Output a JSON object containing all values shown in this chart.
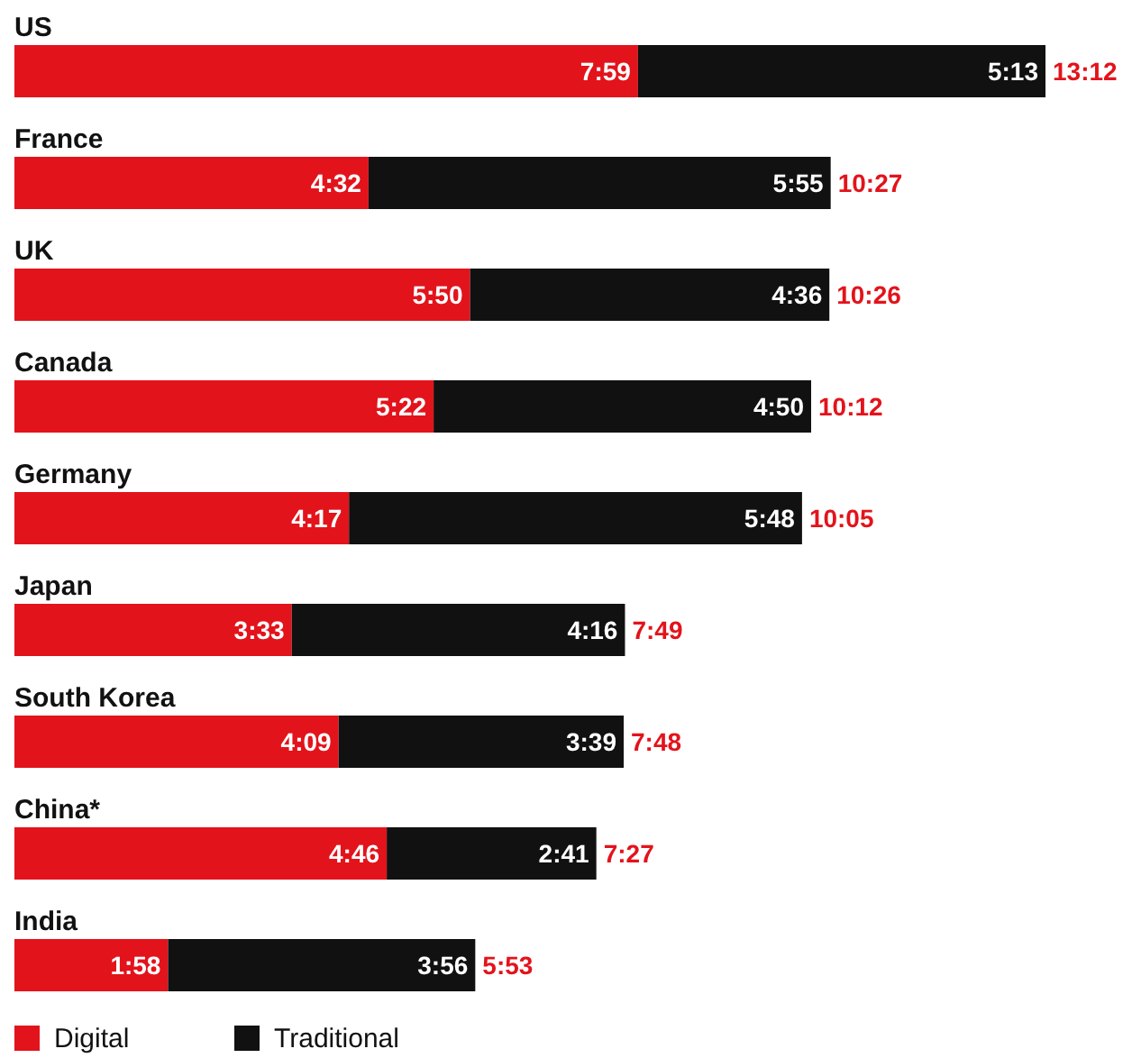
{
  "chart_data": {
    "type": "bar",
    "orientation": "horizontal",
    "stacked": true,
    "legend": "bottom left",
    "categories": [
      "US",
      "France",
      "UK",
      "Canada",
      "Germany",
      "Japan",
      "South Korea",
      "China*",
      "India"
    ],
    "series": [
      {
        "name": "Digital",
        "color": "#e3131b",
        "values": [
          479,
          272,
          350,
          322,
          257,
          213,
          249,
          286,
          118
        ],
        "value_labels": [
          "7:59",
          "4:32",
          "5:50",
          "5:22",
          "4:17",
          "3:33",
          "4:09",
          "4:46",
          "1:58"
        ]
      },
      {
        "name": "Traditional",
        "color": "#111111",
        "values": [
          313,
          355,
          276,
          290,
          348,
          256,
          219,
          161,
          236
        ],
        "value_labels": [
          "5:13",
          "5:55",
          "4:36",
          "4:50",
          "5:48",
          "4:16",
          "3:39",
          "2:41",
          "3:56"
        ]
      }
    ],
    "totals": [
      "13:12",
      "10:27",
      "10:26",
      "10:12",
      "10:05",
      "7:49",
      "7:48",
      "7:27",
      "5:53"
    ]
  }
}
